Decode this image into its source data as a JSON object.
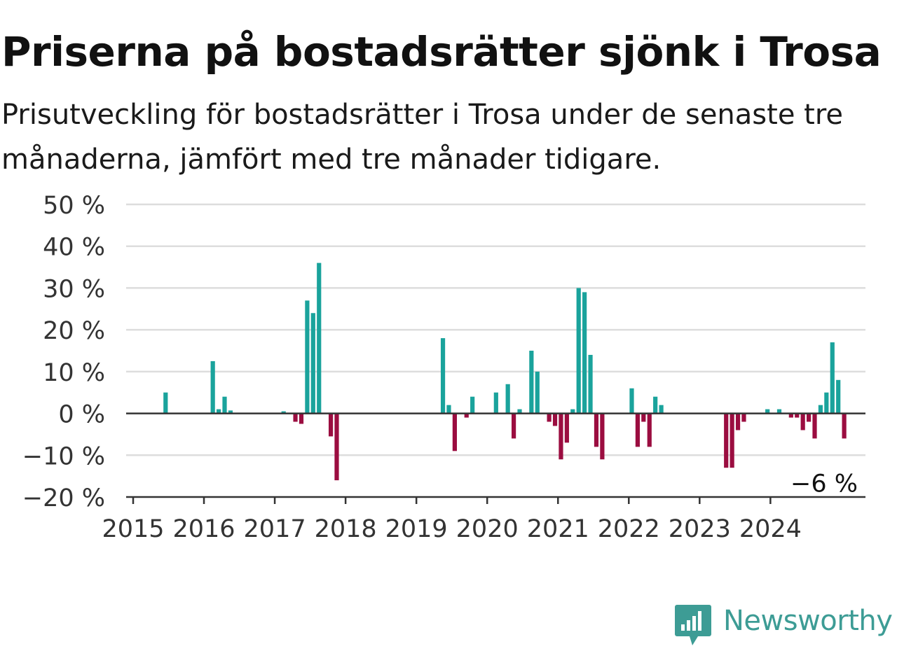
{
  "header": {
    "title": "Priserna på bostadsrätter sjönk i Trosa",
    "subtitle": "Prisutveckling för bostadsrätter i Trosa under de senaste tre månaderna, jämfört med tre månader tidigare."
  },
  "brand": {
    "name": "Newsworthy",
    "logo_icon": "bar-chart-speech-bubble-icon",
    "color": "#3d9c95"
  },
  "colors": {
    "positive": "#1aa39c",
    "negative": "#9b0d40",
    "grid": "#dddddd",
    "axis": "#333333"
  },
  "chart_data": {
    "type": "bar",
    "x_start": "2015-01",
    "period": "month",
    "ylim": [
      -20,
      50
    ],
    "yticks": [
      -20,
      -10,
      0,
      10,
      20,
      30,
      40,
      50
    ],
    "ytick_labels": [
      "−20 %",
      "−10 %",
      "0 %",
      "10 %",
      "20 %",
      "30 %",
      "40 %",
      "50 %"
    ],
    "xtick_labels": [
      "2015",
      "2016",
      "2017",
      "2018",
      "2019",
      "2020",
      "2021",
      "2022",
      "2023",
      "2024"
    ],
    "values": [
      0,
      0,
      0,
      0,
      0,
      5,
      0,
      0,
      0,
      0,
      0,
      0,
      0,
      12.5,
      1,
      4,
      0.7,
      0,
      0,
      0,
      0,
      0,
      0,
      0,
      0,
      0.5,
      0,
      -2,
      -2.5,
      27,
      24,
      36,
      0,
      -5.5,
      -16,
      0,
      0,
      0,
      0,
      0,
      0,
      0,
      0,
      0,
      0,
      0,
      0,
      0,
      0,
      0,
      0,
      0,
      18,
      2,
      -9,
      0,
      -1,
      4,
      0,
      0,
      0,
      5,
      0,
      7,
      -6,
      1,
      0,
      15,
      10,
      0,
      -2,
      -3,
      -11,
      -7,
      1,
      30,
      29,
      14,
      -8,
      -11,
      0,
      0,
      0,
      0,
      6,
      -8,
      -2,
      -8,
      4,
      2,
      0,
      0,
      0,
      0,
      0,
      0,
      0,
      0,
      0,
      0,
      -13,
      -13,
      -4,
      -2,
      0,
      0,
      0,
      1,
      0,
      1,
      0,
      -1,
      -1,
      -4,
      -2,
      -6,
      2,
      5,
      17,
      8,
      -6
    ],
    "annotation": {
      "text": "−6 %",
      "value": -6
    }
  }
}
